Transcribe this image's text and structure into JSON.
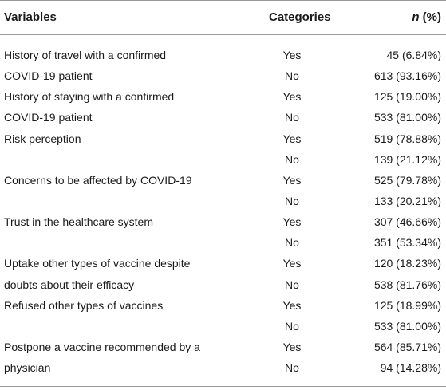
{
  "header": {
    "variables": "Variables",
    "categories": "Categories",
    "n_prefix": "n",
    "n_suffix": " (%)"
  },
  "rows": [
    {
      "variable": "History of travel with a confirmed",
      "category": "Yes",
      "n": "45 (6.84%)"
    },
    {
      "variable": "COVID-19 patient",
      "category": "No",
      "n": "613 (93.16%)"
    },
    {
      "variable": "History of staying with a confirmed",
      "category": "Yes",
      "n": "125 (19.00%)"
    },
    {
      "variable": "COVID-19 patient",
      "category": "No",
      "n": "533 (81.00%)"
    },
    {
      "variable": "Risk perception",
      "category": "Yes",
      "n": "519 (78.88%)"
    },
    {
      "variable": "",
      "category": "No",
      "n": "139 (21.12%)"
    },
    {
      "variable": "Concerns to be affected by COVID-19",
      "category": "Yes",
      "n": "525 (79.78%)"
    },
    {
      "variable": "",
      "category": "No",
      "n": "133 (20.21%)"
    },
    {
      "variable": "Trust in the healthcare system",
      "category": "Yes",
      "n": "307 (46.66%)"
    },
    {
      "variable": "",
      "category": "No",
      "n": "351 (53.34%)"
    },
    {
      "variable": "Uptake other types of vaccine despite",
      "category": "Yes",
      "n": "120 (18.23%)"
    },
    {
      "variable": "doubts about their efficacy",
      "category": "No",
      "n": "538 (81.76%)"
    },
    {
      "variable": "Refused other types of vaccines",
      "category": "Yes",
      "n": "125 (18.99%)"
    },
    {
      "variable": "",
      "category": "No",
      "n": "533 (81.00%)"
    },
    {
      "variable": "Postpone a vaccine recommended by a",
      "category": "Yes",
      "n": "564 (85.71%)"
    },
    {
      "variable": "physician",
      "category": "No",
      "n": "94 (14.28%)"
    }
  ]
}
